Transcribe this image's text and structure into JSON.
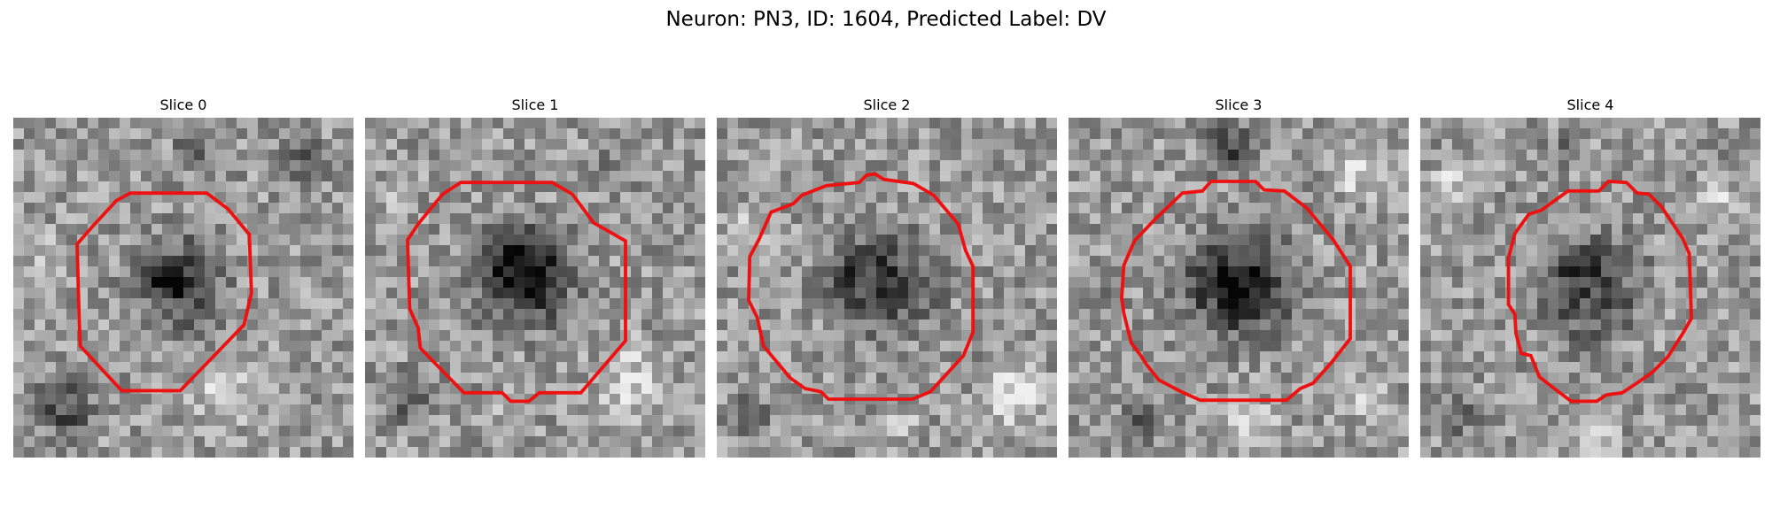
{
  "figure": {
    "title": "Neuron: PN3, ID: 1604, Predicted Label: DV"
  },
  "image_grid": {
    "pixels_per_side": 32,
    "colormap": "grayscale",
    "contour_color": "#ee1111"
  },
  "panels": [
    {
      "title": "Slice 0",
      "seed": 11,
      "blob": {
        "cx": 15.5,
        "cy": 15.5,
        "r": 7.5,
        "depth": 0.32,
        "core_cx": 14.5,
        "core_cy": 15.3,
        "core_r": 2.8,
        "core_depth": 0.38
      },
      "dark_regions": [
        {
          "cx": 5,
          "cy": 27.5,
          "r": 4.5,
          "depth": 0.3
        },
        {
          "cx": 28,
          "cy": 4,
          "r": 3.5,
          "depth": 0.22
        },
        {
          "cx": 17,
          "cy": 3,
          "r": 3,
          "depth": 0.18
        }
      ],
      "light_regions": [
        {
          "cx": 20,
          "cy": 26,
          "r": 5,
          "depth": 0.22
        },
        {
          "cx": 3,
          "cy": 13,
          "r": 3,
          "depth": 0.2
        }
      ],
      "contour": [
        [
          11,
          7.1
        ],
        [
          18.2,
          7.1
        ],
        [
          20.2,
          8.6
        ],
        [
          22.2,
          11
        ],
        [
          22.4,
          16.5
        ],
        [
          21.7,
          19.5
        ],
        [
          15.7,
          25.7
        ],
        [
          10.2,
          25.7
        ],
        [
          6.3,
          21.5
        ],
        [
          6.2,
          19.1
        ],
        [
          6,
          11.9
        ],
        [
          7.4,
          10.3
        ],
        [
          9.7,
          7.8
        ]
      ]
    },
    {
      "title": "Slice 1",
      "seed": 23,
      "blob": {
        "cx": 15,
        "cy": 15,
        "r": 8,
        "depth": 0.42,
        "core_cx": 15,
        "core_cy": 14.5,
        "core_r": 5,
        "core_depth": 0.22
      },
      "dark_regions": [
        {
          "cx": 4,
          "cy": 26,
          "r": 4,
          "depth": 0.28
        },
        {
          "cx": 24,
          "cy": 5,
          "r": 3,
          "depth": 0.14
        }
      ],
      "light_regions": [
        {
          "cx": 25,
          "cy": 25,
          "r": 6,
          "depth": 0.22
        },
        {
          "cx": 3,
          "cy": 8,
          "r": 3,
          "depth": 0.15
        },
        {
          "cx": 14,
          "cy": 27,
          "r": 3,
          "depth": 0.12
        }
      ],
      "contour": [
        [
          9,
          6.1
        ],
        [
          17.6,
          6.1
        ],
        [
          19.5,
          7.2
        ],
        [
          21.5,
          9.9
        ],
        [
          24.5,
          11.6
        ],
        [
          24.5,
          21
        ],
        [
          20.3,
          25.9
        ],
        [
          16.4,
          25.9
        ],
        [
          15.4,
          26.7
        ],
        [
          13.7,
          26.7
        ],
        [
          12.9,
          25.9
        ],
        [
          9.3,
          25.9
        ],
        [
          5.2,
          21.7
        ],
        [
          5,
          19.8
        ],
        [
          4.2,
          18
        ],
        [
          4,
          11.5
        ],
        [
          5,
          10
        ],
        [
          7.3,
          7.2
        ]
      ]
    },
    {
      "title": "Slice 2",
      "seed": 37,
      "blob": {
        "cx": 15.5,
        "cy": 15.5,
        "r": 8.5,
        "depth": 0.36,
        "core_cx": 12.5,
        "core_cy": 14,
        "core_r": 3.5,
        "core_depth": 0.1
      },
      "dark_regions": [
        {
          "cx": 3,
          "cy": 28,
          "r": 3.5,
          "depth": 0.2
        },
        {
          "cx": 22,
          "cy": 2,
          "r": 3,
          "depth": 0.12
        }
      ],
      "light_regions": [
        {
          "cx": 28,
          "cy": 26,
          "r": 5,
          "depth": 0.26
        },
        {
          "cx": 3,
          "cy": 11,
          "r": 3.5,
          "depth": 0.24
        },
        {
          "cx": 17,
          "cy": 29,
          "r": 3,
          "depth": 0.15
        }
      ],
      "contour": [
        [
          10.3,
          6.4
        ],
        [
          13.4,
          6.1
        ],
        [
          14.1,
          5.4
        ],
        [
          14.9,
          5.3
        ],
        [
          15.7,
          5.8
        ],
        [
          18.5,
          6.2
        ],
        [
          20.4,
          7.3
        ],
        [
          22.7,
          10
        ],
        [
          23.4,
          12.5
        ],
        [
          24.1,
          14
        ],
        [
          24.1,
          20.2
        ],
        [
          23.2,
          22.4
        ],
        [
          20.1,
          25.8
        ],
        [
          18.4,
          26.5
        ],
        [
          10.5,
          26.5
        ],
        [
          9.8,
          25.8
        ],
        [
          8.3,
          25.5
        ],
        [
          6.9,
          24.5
        ],
        [
          4.4,
          21.5
        ],
        [
          3.8,
          18.8
        ],
        [
          3,
          17.2
        ],
        [
          3.1,
          13.1
        ],
        [
          4,
          11.4
        ],
        [
          5.1,
          8.9
        ],
        [
          7.2,
          8.1
        ],
        [
          8,
          7.3
        ]
      ]
    },
    {
      "title": "Slice 3",
      "seed": 53,
      "blob": {
        "cx": 16,
        "cy": 15.8,
        "r": 8.5,
        "depth": 0.42,
        "core_cx": 16,
        "core_cy": 16,
        "core_r": 6,
        "core_depth": 0.08
      },
      "dark_regions": [
        {
          "cx": 15,
          "cy": 3,
          "r": 4,
          "depth": 0.32
        },
        {
          "cx": 7,
          "cy": 28.5,
          "r": 3.2,
          "depth": 0.34
        },
        {
          "cx": 3,
          "cy": 17,
          "r": 3,
          "depth": 0.14
        }
      ],
      "light_regions": [
        {
          "cx": 27,
          "cy": 5,
          "r": 4,
          "depth": 0.24
        },
        {
          "cx": 17,
          "cy": 29,
          "r": 4,
          "depth": 0.24
        },
        {
          "cx": 28,
          "cy": 26,
          "r": 4,
          "depth": 0.14
        }
      ],
      "contour": [
        [
          10.7,
          7.1
        ],
        [
          12.6,
          6.9
        ],
        [
          13.4,
          6
        ],
        [
          17.6,
          6
        ],
        [
          18.4,
          6.8
        ],
        [
          20.3,
          6.9
        ],
        [
          22.4,
          8.5
        ],
        [
          24.9,
          11.5
        ],
        [
          26.5,
          14
        ],
        [
          26.5,
          20.8
        ],
        [
          24.7,
          23.1
        ],
        [
          23,
          25
        ],
        [
          21.8,
          25.5
        ],
        [
          20.5,
          26.6
        ],
        [
          12.4,
          26.6
        ],
        [
          10.6,
          25.8
        ],
        [
          8.5,
          24.7
        ],
        [
          7.3,
          23.2
        ],
        [
          6.8,
          22.4
        ],
        [
          5.9,
          21.2
        ],
        [
          5.2,
          18.4
        ],
        [
          5,
          17
        ],
        [
          5.2,
          13.9
        ],
        [
          6.2,
          11.6
        ],
        [
          8.2,
          9.5
        ]
      ]
    },
    {
      "title": "Slice 4",
      "seed": 71,
      "blob": {
        "cx": 16,
        "cy": 16,
        "r": 8.2,
        "depth": 0.32,
        "core_cx": 14.5,
        "core_cy": 14,
        "core_r": 3.5,
        "core_depth": 0.14
      },
      "dark_regions": [
        {
          "cx": 4,
          "cy": 28,
          "r": 3,
          "depth": 0.2
        },
        {
          "cx": 26,
          "cy": 27,
          "r": 2.5,
          "depth": 0.12
        },
        {
          "cx": 13,
          "cy": 3,
          "r": 3,
          "depth": 0.12
        }
      ],
      "light_regions": [
        {
          "cx": 28,
          "cy": 8,
          "r": 4,
          "depth": 0.2
        },
        {
          "cx": 3,
          "cy": 6,
          "r": 3,
          "depth": 0.2
        },
        {
          "cx": 17,
          "cy": 30,
          "r": 3,
          "depth": 0.14
        }
      ],
      "contour": [
        [
          11.4,
          8.7
        ],
        [
          13.9,
          6.9
        ],
        [
          16.8,
          6.9
        ],
        [
          17.7,
          6
        ],
        [
          19.4,
          6.1
        ],
        [
          20.4,
          7.1
        ],
        [
          21.5,
          7.2
        ],
        [
          22.7,
          8.4
        ],
        [
          24.7,
          11.4
        ],
        [
          25.3,
          12.8
        ],
        [
          25.5,
          18.9
        ],
        [
          24.7,
          20.3
        ],
        [
          23.3,
          22.5
        ],
        [
          21.8,
          24
        ],
        [
          20.5,
          24.9
        ],
        [
          19,
          25.9
        ],
        [
          17.5,
          26.1
        ],
        [
          16.6,
          26.7
        ],
        [
          14.2,
          26.7
        ],
        [
          12.6,
          25.5
        ],
        [
          11.2,
          24.4
        ],
        [
          10.4,
          22.4
        ],
        [
          9.5,
          22.2
        ],
        [
          9,
          20.3
        ],
        [
          8.9,
          18.5
        ],
        [
          8.3,
          17.6
        ],
        [
          8.3,
          13.2
        ],
        [
          8.9,
          10.9
        ],
        [
          10.2,
          9.1
        ]
      ]
    }
  ]
}
